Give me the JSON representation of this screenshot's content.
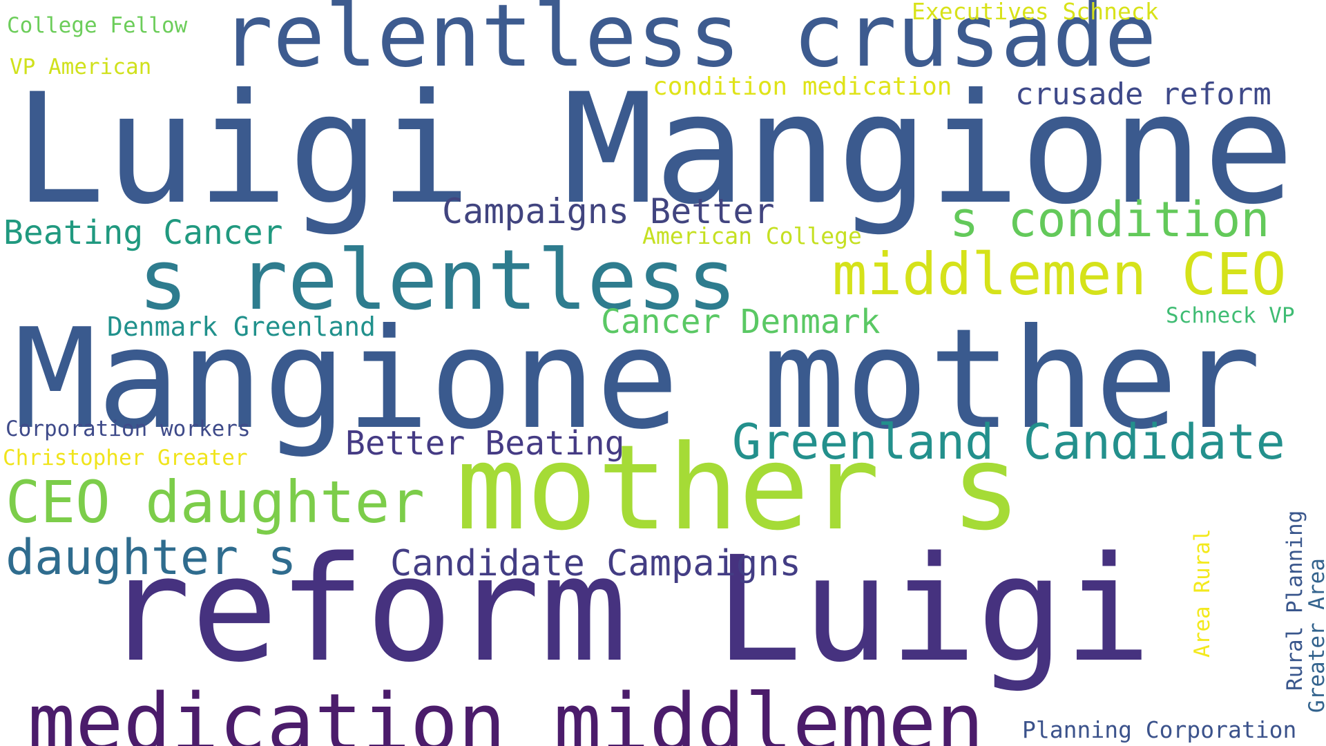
{
  "word_cloud": {
    "words": [
      {
        "text": "Luigi Mangione",
        "color": "#3b5a8e"
      },
      {
        "text": "Mangione mother",
        "color": "#3a5a8e"
      },
      {
        "text": "reform Luigi",
        "color": "#46327f"
      },
      {
        "text": "mother s",
        "color": "#a5db36"
      },
      {
        "text": "relentless crusade",
        "color": "#3d5b8f"
      },
      {
        "text": "medication middlemen",
        "color": "#4b1c6b"
      },
      {
        "text": "s relentless",
        "color": "#2e7c8e"
      },
      {
        "text": "middlemen CEO",
        "color": "#d5e21a"
      },
      {
        "text": "CEO daughter",
        "color": "#7ccd4a"
      },
      {
        "text": "s condition",
        "color": "#63c95a"
      },
      {
        "text": "Greenland Candidate",
        "color": "#23908c"
      },
      {
        "text": "daughter s",
        "color": "#2f6c8e"
      },
      {
        "text": "Candidate Campaigns",
        "color": "#433d84"
      },
      {
        "text": "crusade reform",
        "color": "#3e4989"
      },
      {
        "text": "Campaigns Better",
        "color": "#41447f"
      },
      {
        "text": "Beating Cancer",
        "color": "#20997f"
      },
      {
        "text": "Cancer Denmark",
        "color": "#5ac864"
      },
      {
        "text": "Better Beating",
        "color": "#453b84"
      },
      {
        "text": "Denmark Greenland",
        "color": "#21918c"
      },
      {
        "text": "condition medication",
        "color": "#dfe318"
      },
      {
        "text": "American College",
        "color": "#c5e021"
      },
      {
        "text": "Executives Schneck",
        "color": "#d8e219"
      },
      {
        "text": "Planning Corporation",
        "color": "#3b528b"
      },
      {
        "text": "Corporation workers",
        "color": "#3e4a89"
      },
      {
        "text": "Christopher Greater",
        "color": "#f0e41b"
      },
      {
        "text": "College Fellow",
        "color": "#6ccd5a"
      },
      {
        "text": "Schneck VP",
        "color": "#3fbc73"
      },
      {
        "text": "VP American",
        "color": "#d0e11c"
      },
      {
        "text": "Rural Planning",
        "color": "#39568c"
      },
      {
        "text": "Greater Area",
        "color": "#33638d"
      },
      {
        "text": "Area Rural",
        "color": "#f3e91d"
      }
    ]
  }
}
